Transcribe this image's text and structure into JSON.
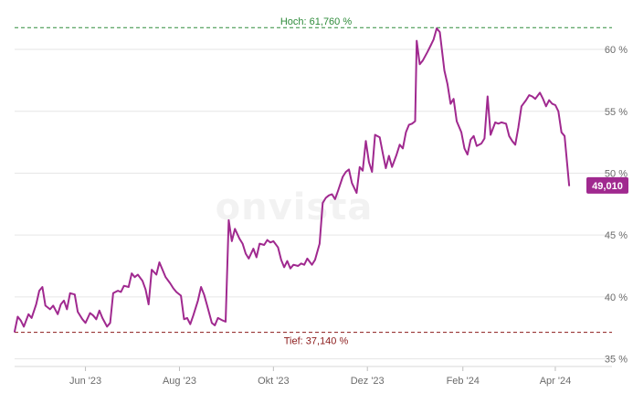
{
  "chart_data": {
    "type": "line",
    "watermark": "onvista",
    "ylim": [
      34.6,
      63.4
    ],
    "xlim": [
      "2023-04-16",
      "2024-04-20"
    ],
    "y_ticks": [
      35,
      40,
      45,
      50,
      55,
      60
    ],
    "y_tick_labels": [
      "35 %",
      "40 %",
      "45 %",
      "50 %",
      "55 %",
      "60 %"
    ],
    "x_ticks": [
      "2023-06-01",
      "2023-08-01",
      "2023-10-01",
      "2023-12-01",
      "2024-02-01",
      "2024-04-01"
    ],
    "x_tick_labels": [
      "Jun '23",
      "Aug '23",
      "Okt '23",
      "Dez '23",
      "Feb '24",
      "Apr '24"
    ],
    "high": {
      "value": 61.76,
      "label": "Hoch: 61,760 %",
      "color": "#2e8b3a"
    },
    "low": {
      "value": 37.14,
      "label": "Tief: 37,140 %",
      "color": "#8b1a1a"
    },
    "last": {
      "value": 49.01,
      "label": "49,010"
    },
    "line_color": "#a0298f",
    "grid": true,
    "series": [
      {
        "values": [
          [
            "2023-04-16",
            37.2
          ],
          [
            "2023-04-18",
            38.4
          ],
          [
            "2023-04-20",
            38.1
          ],
          [
            "2023-04-22",
            37.6
          ],
          [
            "2023-04-25",
            38.6
          ],
          [
            "2023-04-27",
            38.3
          ],
          [
            "2023-04-30",
            39.4
          ],
          [
            "2023-05-02",
            40.5
          ],
          [
            "2023-05-04",
            40.8
          ],
          [
            "2023-05-06",
            39.3
          ],
          [
            "2023-05-09",
            39.0
          ],
          [
            "2023-05-11",
            39.3
          ],
          [
            "2023-05-14",
            38.6
          ],
          [
            "2023-05-16",
            39.4
          ],
          [
            "2023-05-18",
            39.7
          ],
          [
            "2023-05-20",
            39.0
          ],
          [
            "2023-05-22",
            40.3
          ],
          [
            "2023-05-25",
            40.2
          ],
          [
            "2023-05-27",
            38.8
          ],
          [
            "2023-05-30",
            38.2
          ],
          [
            "2023-06-01",
            37.9
          ],
          [
            "2023-06-04",
            38.7
          ],
          [
            "2023-06-06",
            38.5
          ],
          [
            "2023-06-08",
            38.2
          ],
          [
            "2023-06-10",
            38.9
          ],
          [
            "2023-06-12",
            38.3
          ],
          [
            "2023-06-15",
            37.6
          ],
          [
            "2023-06-17",
            37.9
          ],
          [
            "2023-06-19",
            40.3
          ],
          [
            "2023-06-22",
            40.5
          ],
          [
            "2023-06-24",
            40.4
          ],
          [
            "2023-06-26",
            40.9
          ],
          [
            "2023-06-29",
            40.8
          ],
          [
            "2023-07-01",
            41.9
          ],
          [
            "2023-07-03",
            41.6
          ],
          [
            "2023-07-05",
            41.8
          ],
          [
            "2023-07-08",
            41.3
          ],
          [
            "2023-07-10",
            40.6
          ],
          [
            "2023-07-12",
            39.4
          ],
          [
            "2023-07-14",
            42.2
          ],
          [
            "2023-07-17",
            41.8
          ],
          [
            "2023-07-19",
            42.8
          ],
          [
            "2023-07-21",
            42.2
          ],
          [
            "2023-07-23",
            41.6
          ],
          [
            "2023-07-26",
            41.1
          ],
          [
            "2023-07-28",
            40.7
          ],
          [
            "2023-07-30",
            40.4
          ],
          [
            "2023-08-02",
            40.1
          ],
          [
            "2023-08-04",
            38.2
          ],
          [
            "2023-08-06",
            38.3
          ],
          [
            "2023-08-08",
            37.8
          ],
          [
            "2023-08-10",
            38.5
          ],
          [
            "2023-08-13",
            39.7
          ],
          [
            "2023-08-15",
            40.8
          ],
          [
            "2023-08-17",
            40.2
          ],
          [
            "2023-08-19",
            39.3
          ],
          [
            "2023-08-22",
            37.9
          ],
          [
            "2023-08-24",
            37.7
          ],
          [
            "2023-08-26",
            38.3
          ],
          [
            "2023-08-29",
            38.1
          ],
          [
            "2023-08-31",
            38.0
          ],
          [
            "2023-09-02",
            46.2
          ],
          [
            "2023-09-04",
            44.5
          ],
          [
            "2023-09-06",
            45.5
          ],
          [
            "2023-09-09",
            44.7
          ],
          [
            "2023-09-11",
            44.3
          ],
          [
            "2023-09-13",
            43.5
          ],
          [
            "2023-09-15",
            43.1
          ],
          [
            "2023-09-18",
            43.9
          ],
          [
            "2023-09-20",
            43.2
          ],
          [
            "2023-09-22",
            44.3
          ],
          [
            "2023-09-25",
            44.2
          ],
          [
            "2023-09-27",
            44.6
          ],
          [
            "2023-09-29",
            44.4
          ],
          [
            "2023-10-01",
            44.5
          ],
          [
            "2023-10-04",
            44.0
          ],
          [
            "2023-10-06",
            43.0
          ],
          [
            "2023-10-08",
            42.4
          ],
          [
            "2023-10-10",
            42.9
          ],
          [
            "2023-10-12",
            42.3
          ],
          [
            "2023-10-14",
            42.6
          ],
          [
            "2023-10-17",
            42.5
          ],
          [
            "2023-10-19",
            42.7
          ],
          [
            "2023-10-21",
            42.6
          ],
          [
            "2023-10-23",
            43.1
          ],
          [
            "2023-10-26",
            42.6
          ],
          [
            "2023-10-28",
            43.0
          ],
          [
            "2023-10-31",
            44.3
          ],
          [
            "2023-11-02",
            47.6
          ],
          [
            "2023-11-04",
            48.0
          ],
          [
            "2023-11-06",
            48.2
          ],
          [
            "2023-11-08",
            48.3
          ],
          [
            "2023-11-10",
            47.9
          ],
          [
            "2023-11-12",
            48.6
          ],
          [
            "2023-11-15",
            49.7
          ],
          [
            "2023-11-17",
            50.1
          ],
          [
            "2023-11-19",
            50.3
          ],
          [
            "2023-11-21",
            49.2
          ],
          [
            "2023-11-24",
            48.4
          ],
          [
            "2023-11-26",
            50.5
          ],
          [
            "2023-11-28",
            50.2
          ],
          [
            "2023-11-30",
            52.6
          ],
          [
            "2023-12-02",
            50.9
          ],
          [
            "2023-12-04",
            50.1
          ],
          [
            "2023-12-06",
            53.1
          ],
          [
            "2023-12-09",
            52.9
          ],
          [
            "2023-12-11",
            51.6
          ],
          [
            "2023-12-13",
            50.4
          ],
          [
            "2023-12-15",
            51.4
          ],
          [
            "2023-12-17",
            50.5
          ],
          [
            "2023-12-20",
            51.5
          ],
          [
            "2023-12-22",
            52.3
          ],
          [
            "2023-12-24",
            52.0
          ],
          [
            "2023-12-26",
            53.3
          ],
          [
            "2023-12-28",
            53.9
          ],
          [
            "2023-12-30",
            54.0
          ],
          [
            "2024-01-01",
            54.2
          ],
          [
            "2024-01-02",
            60.7
          ],
          [
            "2024-01-04",
            58.8
          ],
          [
            "2024-01-06",
            59.1
          ],
          [
            "2024-01-09",
            59.8
          ],
          [
            "2024-01-11",
            60.3
          ],
          [
            "2024-01-13",
            60.8
          ],
          [
            "2024-01-15",
            61.7
          ],
          [
            "2024-01-17",
            61.4
          ],
          [
            "2024-01-20",
            58.3
          ],
          [
            "2024-01-22",
            57.2
          ],
          [
            "2024-01-24",
            55.6
          ],
          [
            "2024-01-26",
            56.0
          ],
          [
            "2024-01-28",
            54.2
          ],
          [
            "2024-01-31",
            53.3
          ],
          [
            "2024-02-02",
            52.0
          ],
          [
            "2024-02-04",
            51.5
          ],
          [
            "2024-02-06",
            52.7
          ],
          [
            "2024-02-08",
            53.0
          ],
          [
            "2024-02-10",
            52.2
          ],
          [
            "2024-02-13",
            52.4
          ],
          [
            "2024-02-15",
            52.8
          ],
          [
            "2024-02-17",
            56.2
          ],
          [
            "2024-02-19",
            53.1
          ],
          [
            "2024-02-22",
            54.1
          ],
          [
            "2024-02-24",
            54.0
          ],
          [
            "2024-02-26",
            54.1
          ],
          [
            "2024-02-29",
            54.0
          ],
          [
            "2024-03-02",
            53.0
          ],
          [
            "2024-03-04",
            52.6
          ],
          [
            "2024-03-06",
            52.3
          ],
          [
            "2024-03-08",
            53.7
          ],
          [
            "2024-03-10",
            55.4
          ],
          [
            "2024-03-13",
            55.9
          ],
          [
            "2024-03-15",
            56.3
          ],
          [
            "2024-03-17",
            56.2
          ],
          [
            "2024-03-19",
            56.0
          ],
          [
            "2024-03-22",
            56.5
          ],
          [
            "2024-03-24",
            56.0
          ],
          [
            "2024-03-26",
            55.4
          ],
          [
            "2024-03-28",
            55.9
          ],
          [
            "2024-03-30",
            55.6
          ],
          [
            "2024-04-01",
            55.5
          ],
          [
            "2024-04-03",
            55.0
          ],
          [
            "2024-04-05",
            53.3
          ],
          [
            "2024-04-07",
            53.0
          ],
          [
            "2024-04-10",
            49.01
          ]
        ]
      }
    ]
  }
}
